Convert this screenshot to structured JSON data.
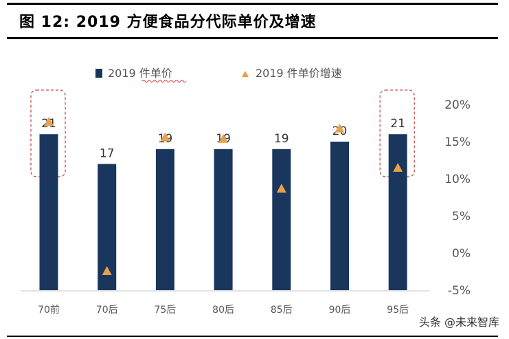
{
  "header": {
    "title": "图 12:  2019  方便食品分代际单价及增速"
  },
  "watermark": "头条 @未来智库",
  "colors": {
    "bar": "#1b365d",
    "triangle": "#e9a04b",
    "highlight_box": "#c0504d"
  },
  "chart_data": {
    "type": "bar",
    "title": "",
    "categories": [
      "70前",
      "70后",
      "75后",
      "80后",
      "85后",
      "90后",
      "95后"
    ],
    "series": [
      {
        "name": "2019 件单价",
        "type": "bar",
        "axis": "left",
        "values": [
          21,
          17,
          19,
          19,
          19,
          20,
          21
        ],
        "data_labels": [
          "21",
          "17",
          "19",
          "19",
          "19",
          "20",
          "21"
        ]
      },
      {
        "name": "2019 件单价增速",
        "type": "scatter",
        "marker": "triangle",
        "axis": "right",
        "values": [
          17.6,
          -2.5,
          15.5,
          15.3,
          8.6,
          16.7,
          11.4
        ]
      }
    ],
    "y_left": {
      "range": [
        0,
        25
      ],
      "visible": false
    },
    "y_right": {
      "range": [
        -5,
        20
      ],
      "ticks": [
        "-5%",
        "0%",
        "5%",
        "10%",
        "15%",
        "20%"
      ],
      "tick_values": [
        -5,
        0,
        5,
        10,
        15,
        20
      ]
    },
    "legend": "top",
    "grid": false,
    "highlighted_categories": [
      "70前",
      "95后"
    ]
  }
}
